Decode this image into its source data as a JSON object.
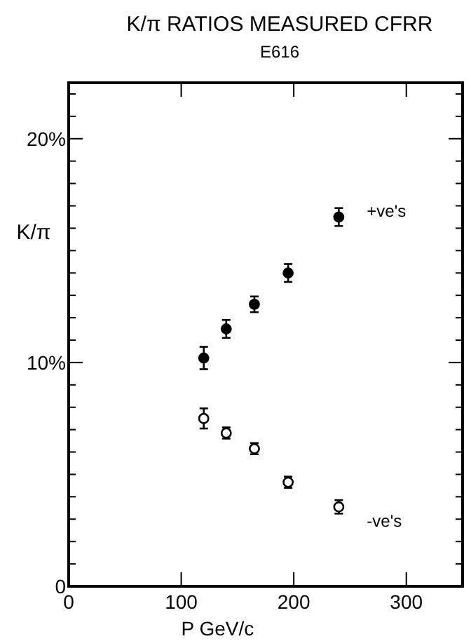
{
  "chart_data": {
    "type": "scatter",
    "title": "K/π RATIOS MEASURED CFRR",
    "subtitle": "E616",
    "xlabel": "P GeV/c",
    "ylabel": "K/π",
    "x": [
      120,
      140,
      165,
      195,
      240
    ],
    "series": [
      {
        "name": "+ve's",
        "color": "#000000",
        "values": [
          10.2,
          11.5,
          12.6,
          14.0,
          16.5
        ],
        "errors": [
          0.5,
          0.4,
          0.35,
          0.4,
          0.4
        ]
      },
      {
        "name": "-ve's",
        "color": "#000000",
        "values": [
          7.5,
          6.85,
          6.15,
          4.65,
          3.55
        ],
        "errors": [
          0.45,
          0.25,
          0.25,
          0.25,
          0.3
        ]
      }
    ],
    "xlim": [
      0,
      350
    ],
    "ylim": [
      0,
      22.5
    ],
    "xticks": [
      0,
      100,
      200,
      300
    ],
    "yticks": [
      "0",
      {
        "value": 1,
        "label": null
      },
      {
        "value": 2,
        "label": null
      },
      {
        "value": 3,
        "label": null
      },
      {
        "value": 4,
        "label": null
      },
      {
        "value": 5,
        "label": null
      },
      {
        "value": 6,
        "label": null
      },
      {
        "value": 7,
        "label": null
      },
      {
        "value": 8,
        "label": null
      },
      {
        "value": 9,
        "label": null
      },
      {
        "value": 10,
        "label": "10%"
      },
      {
        "value": 11,
        "label": null
      },
      {
        "value": 12,
        "label": null
      },
      {
        "value": 13,
        "label": null
      },
      {
        "value": 14,
        "label": null
      },
      {
        "value": 15,
        "label": null
      },
      {
        "value": 16,
        "label": null
      },
      {
        "value": 17,
        "label": null
      },
      {
        "value": 18,
        "label": null
      },
      {
        "value": 19,
        "label": null
      },
      {
        "value": 20,
        "label": "20%"
      },
      {
        "value": 21,
        "label": null
      },
      {
        "value": 22,
        "label": null
      }
    ],
    "grid": false,
    "marker": "circle"
  }
}
